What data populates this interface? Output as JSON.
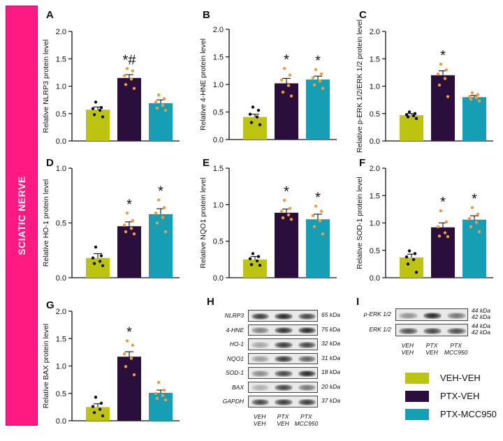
{
  "side_label": "SCIATIC NERVE",
  "colors": {
    "VEH-VEH": "#bcc40f",
    "PTX-VEH": "#2a0f3c",
    "PTX-MCC950": "#169fb4",
    "dot_veh": "#111111",
    "dot_ptx": "#f39a3a",
    "side_band": "#ff1a82"
  },
  "chart_data": [
    {
      "panel": "A",
      "type": "bar",
      "categories": [
        "VEH-VEH",
        "PTX-VEH",
        "PTX-MCC950"
      ],
      "values": [
        0.57,
        1.15,
        0.69
      ],
      "errors": [
        0.05,
        0.06,
        0.06
      ],
      "ylabel": "Relative NLRP3 protein level",
      "ylim": [
        0,
        2.0
      ],
      "yticks": [
        "0.0",
        "0.5",
        "1.0",
        "1.5",
        "2.0"
      ],
      "annotations": [
        "",
        "*#",
        ""
      ],
      "points": [
        [
          0.71,
          0.61,
          0.59,
          0.56,
          0.48,
          0.44
        ],
        [
          1.32,
          1.28,
          1.19,
          1.13,
          1.03,
          0.96
        ],
        [
          0.84,
          0.77,
          0.71,
          0.65,
          0.6,
          0.56
        ]
      ]
    },
    {
      "panel": "B",
      "type": "bar",
      "categories": [
        "VEH-VEH",
        "PTX-VEH",
        "PTX-MCC950"
      ],
      "values": [
        0.41,
        1.02,
        1.09
      ],
      "errors": [
        0.05,
        0.09,
        0.06
      ],
      "ylabel": "Relative 4-HNE protein level",
      "ylim": [
        0,
        2.0
      ],
      "yticks": [
        "0.0",
        "0.5",
        "1.0",
        "1.5",
        "2.0"
      ],
      "annotations": [
        "",
        "*",
        "*"
      ],
      "points": [
        [
          0.59,
          0.53,
          0.46,
          0.41,
          0.31,
          0.27
        ],
        [
          1.29,
          1.17,
          1.08,
          0.98,
          0.86,
          0.79
        ],
        [
          1.27,
          1.19,
          1.12,
          1.06,
          0.99,
          0.93
        ]
      ]
    },
    {
      "panel": "C",
      "type": "bar",
      "categories": [
        "VEH-VEH",
        "PTX-VEH",
        "PTX-MCC950"
      ],
      "values": [
        0.47,
        1.2,
        0.8
      ],
      "errors": [
        0.03,
        0.08,
        0.03
      ],
      "ylabel": "Relative p-ERK 1/2/ERK 1/2 protein level",
      "ylim": [
        0,
        2.0
      ],
      "yticks": [
        "0.0",
        "0.5",
        "1.0",
        "1.5",
        "2.0"
      ],
      "annotations": [
        "",
        "*",
        ""
      ],
      "points": [
        [
          0.53,
          0.5,
          0.48,
          0.46,
          0.44,
          0.41
        ],
        [
          1.4,
          1.3,
          1.22,
          1.14,
          1.02,
          0.81
        ],
        [
          0.88,
          0.85,
          0.81,
          0.79,
          0.76,
          0.73
        ]
      ]
    },
    {
      "panel": "D",
      "type": "bar",
      "categories": [
        "VEH-VEH",
        "PTX-VEH",
        "PTX-MCC950"
      ],
      "values": [
        0.18,
        0.47,
        0.58
      ],
      "errors": [
        0.04,
        0.04,
        0.05
      ],
      "ylabel": "Relative HO-1 protein level",
      "ylim": [
        0,
        1.0
      ],
      "yticks": [
        "0.0",
        "0.5",
        "1.0"
      ],
      "annotations": [
        "",
        "*",
        "*"
      ],
      "points": [
        [
          0.28,
          0.2,
          0.18,
          0.15,
          0.13,
          0.11
        ],
        [
          0.59,
          0.52,
          0.48,
          0.45,
          0.42,
          0.4
        ],
        [
          0.71,
          0.64,
          0.59,
          0.55,
          0.5,
          0.42
        ]
      ]
    },
    {
      "panel": "E",
      "type": "bar",
      "categories": [
        "VEH-VEH",
        "PTX-VEH",
        "PTX-MCC950"
      ],
      "values": [
        0.25,
        0.89,
        0.8
      ],
      "errors": [
        0.04,
        0.05,
        0.07
      ],
      "ylabel": "Relative NQO1 protein level",
      "ylim": [
        0,
        1.5
      ],
      "yticks": [
        "0.0",
        "0.5",
        "1.0",
        "1.5"
      ],
      "annotations": [
        "",
        "*",
        "*"
      ],
      "points": [
        [
          0.33,
          0.29,
          0.26,
          0.23,
          0.18,
          0.17
        ],
        [
          1.06,
          0.95,
          0.91,
          0.86,
          0.82,
          0.8
        ],
        [
          0.98,
          0.91,
          0.85,
          0.78,
          0.7,
          0.6
        ]
      ]
    },
    {
      "panel": "F",
      "type": "bar",
      "categories": [
        "VEH-VEH",
        "PTX-VEH",
        "PTX-MCC950"
      ],
      "values": [
        0.37,
        0.92,
        1.06
      ],
      "errors": [
        0.06,
        0.08,
        0.07
      ],
      "ylabel": "Relative SOD-1 protein level",
      "ylim": [
        0,
        2.0
      ],
      "yticks": [
        "0.0",
        "0.5",
        "1.0",
        "1.5",
        "2.0"
      ],
      "annotations": [
        "",
        "*",
        "*"
      ],
      "points": [
        [
          0.49,
          0.44,
          0.38,
          0.33,
          0.25,
          0.1
        ],
        [
          1.22,
          1.02,
          0.93,
          0.82,
          0.76,
          0.75
        ],
        [
          1.28,
          1.16,
          1.08,
          1.01,
          0.93,
          0.84
        ]
      ]
    },
    {
      "panel": "G",
      "type": "bar",
      "categories": [
        "VEH-VEH",
        "PTX-VEH",
        "PTX-MCC950"
      ],
      "values": [
        0.25,
        1.17,
        0.51
      ],
      "errors": [
        0.06,
        0.09,
        0.05
      ],
      "ylabel": "Relative BAX protein level",
      "ylim": [
        0,
        2.0
      ],
      "yticks": [
        "0.0",
        "0.5",
        "1.0",
        "1.5",
        "2.0"
      ],
      "annotations": [
        "",
        "*",
        ""
      ],
      "points": [
        [
          0.43,
          0.32,
          0.26,
          0.21,
          0.15,
          0.09
        ],
        [
          1.46,
          1.38,
          1.22,
          1.14,
          0.99,
          0.84
        ],
        [
          0.7,
          0.56,
          0.5,
          0.46,
          0.41,
          0.38
        ]
      ]
    }
  ],
  "blot_H": {
    "letter": "H",
    "rows": [
      {
        "name": "NLRP3",
        "kda": "65 kDa"
      },
      {
        "name": "4-HNE",
        "kda": "75 kDa"
      },
      {
        "name": "HO-1",
        "kda": "32 kDa"
      },
      {
        "name": "NQO1",
        "kda": "31 kDa"
      },
      {
        "name": "SOD-1",
        "kda": "18 kDa"
      },
      {
        "name": "BAX",
        "kda": "20 kDa"
      },
      {
        "name": "GAPDH",
        "kda": "37 kDa"
      }
    ],
    "lanes": [
      "VEH\nVEH",
      "PTX\nVEH",
      "PTX\nMCC950"
    ]
  },
  "blot_I": {
    "letter": "I",
    "rows": [
      {
        "name": "p-ERK 1/2",
        "kda": "44 kDa\n42 kDa"
      },
      {
        "name": "ERK 1/2",
        "kda": "44 kDa\n42 kDa"
      }
    ],
    "lanes": [
      "VEH\nVEH",
      "PTX\nVEH",
      "PTX\nMCC950"
    ]
  },
  "legend": [
    {
      "label": "VEH-VEH",
      "color": "#bcc40f"
    },
    {
      "label": "PTX-VEH",
      "color": "#2a0f3c"
    },
    {
      "label": "PTX-MCC950",
      "color": "#169fb4"
    }
  ]
}
